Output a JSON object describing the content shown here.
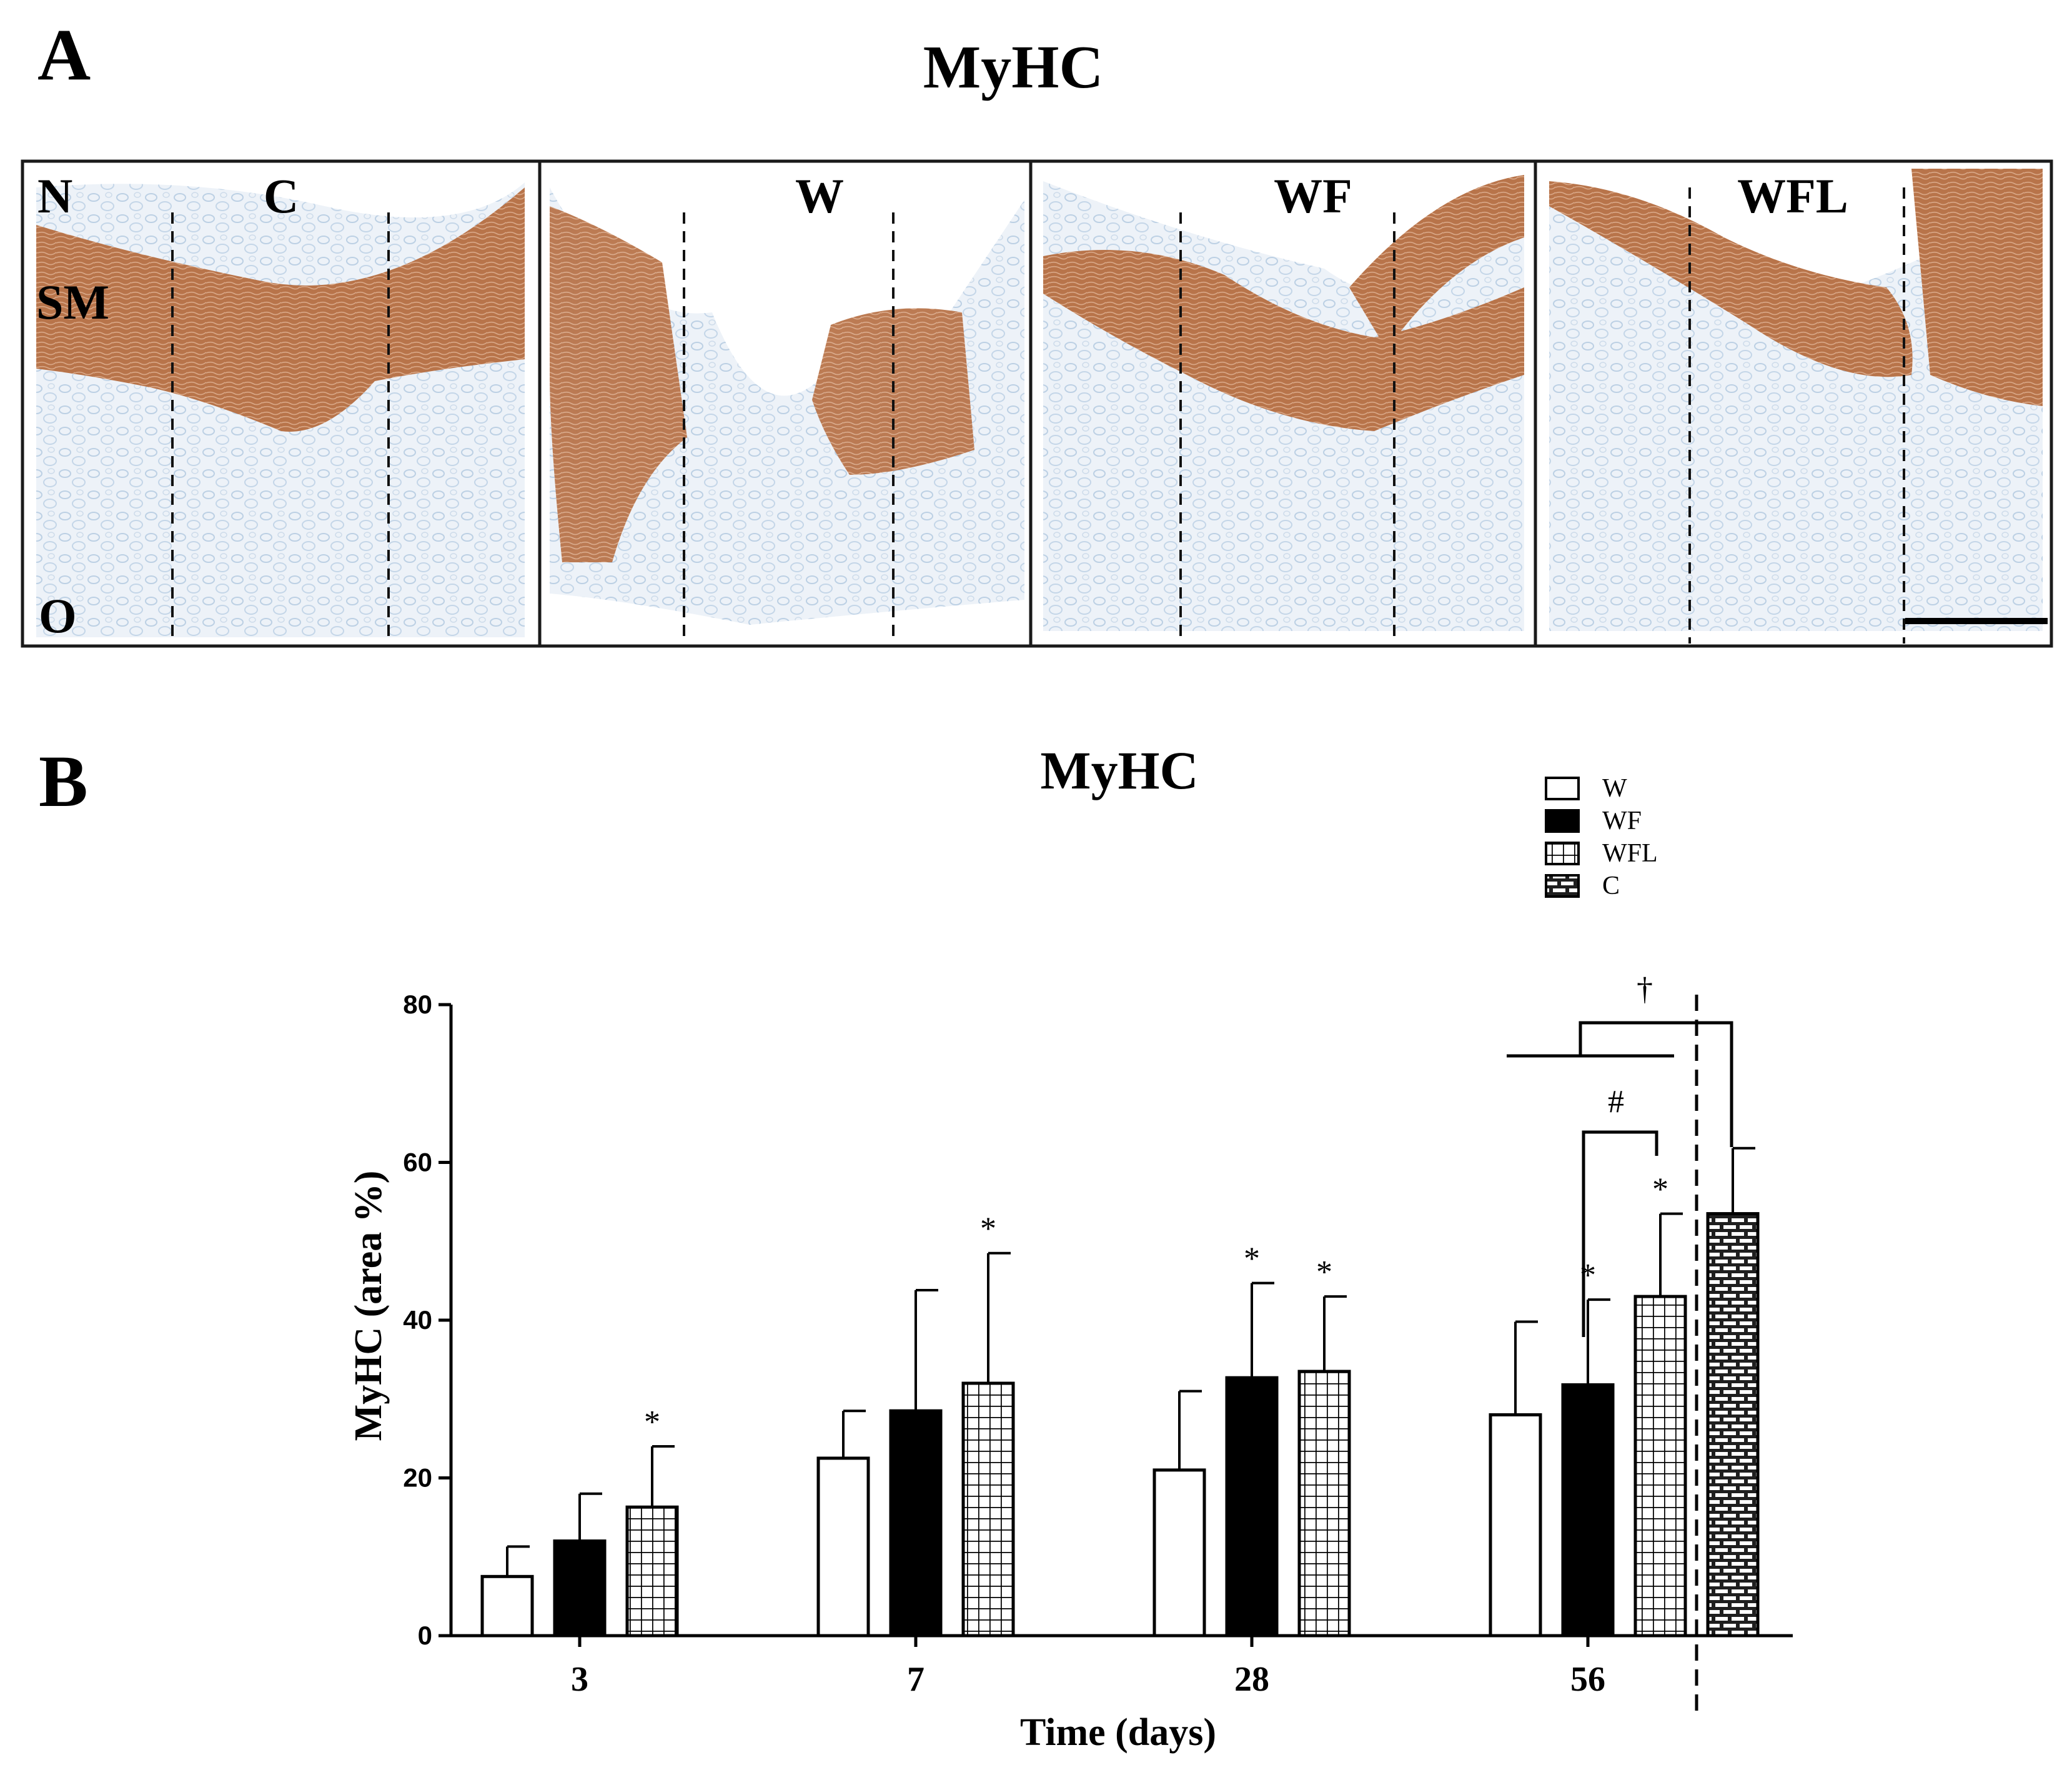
{
  "panel_a": {
    "letter": "A",
    "title": "MyHC",
    "layer_labels": [
      "N",
      "SM",
      "O"
    ],
    "panels": [
      {
        "label": "C"
      },
      {
        "label": "W"
      },
      {
        "label": "WF"
      },
      {
        "label": "WFL"
      }
    ],
    "colors": {
      "tissue": "#e6eef6",
      "stain": "#b9774c",
      "frame": "#1a1a1a"
    }
  },
  "panel_b": {
    "letter": "B",
    "legend": [
      {
        "label": "W",
        "pattern": "white"
      },
      {
        "label": "WF",
        "pattern": "black"
      },
      {
        "label": "WFL",
        "pattern": "grid"
      },
      {
        "label": "C",
        "pattern": "brick"
      }
    ],
    "annotations": {
      "star": "*",
      "hash": "#",
      "dagger": "†"
    }
  },
  "chart_data": {
    "type": "bar",
    "title": "MyHC",
    "xlabel": "Time (days)",
    "ylabel": "MyHC (area %)",
    "ylim": [
      0,
      80
    ],
    "yticks": [
      0,
      20,
      40,
      60,
      80
    ],
    "categories": [
      "3",
      "7",
      "28",
      "56"
    ],
    "series": [
      {
        "name": "W",
        "values": [
          7.5,
          22.5,
          21,
          28
        ],
        "errors": [
          3.8,
          6,
          10,
          11.8
        ],
        "sig": [
          false,
          false,
          false,
          false
        ]
      },
      {
        "name": "WF",
        "values": [
          12,
          28.5,
          32.7,
          31.8
        ],
        "errors": [
          6,
          15.3,
          12,
          10.8
        ],
        "sig": [
          false,
          false,
          true,
          true
        ]
      },
      {
        "name": "WFL",
        "values": [
          16.3,
          32,
          33.5,
          43
        ],
        "errors": [
          7.7,
          16.5,
          9.5,
          10.5
        ],
        "sig": [
          true,
          true,
          true,
          true
        ]
      }
    ],
    "control": {
      "name": "C",
      "value": 53.5,
      "error": 8.3
    },
    "colors": {
      "axis": "#000000",
      "fill_light": "#ffffff",
      "fill_dark": "#000000"
    }
  }
}
